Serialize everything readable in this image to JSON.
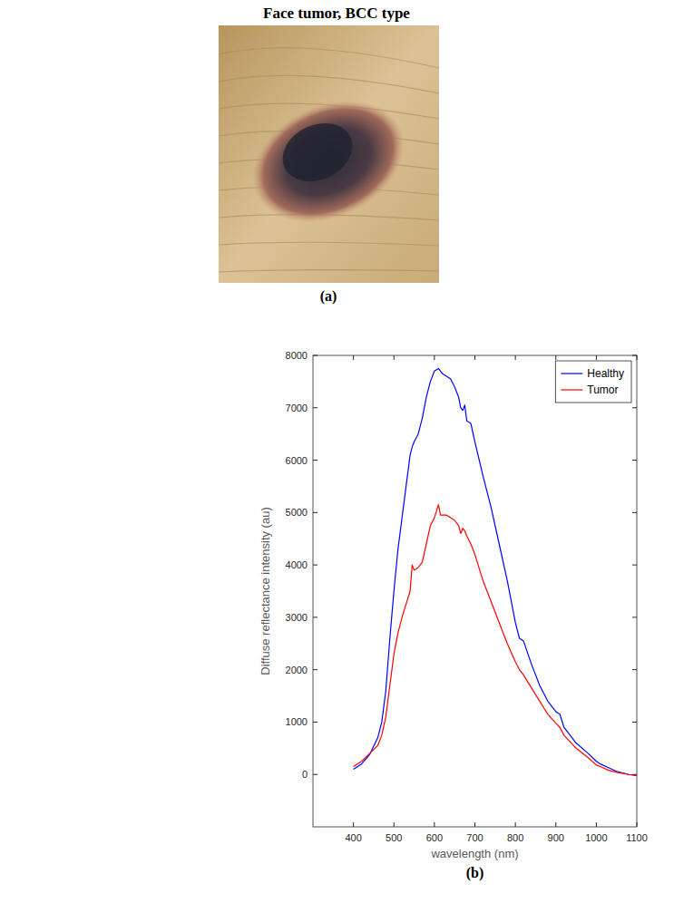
{
  "figure": {
    "title": "Face tumor, BCC type",
    "panels": [
      "(a)",
      "(b)"
    ]
  },
  "chart_data": {
    "type": "line",
    "xlabel": "wavelength (nm)",
    "ylabel": "Diffuse reflectance intensity (au)",
    "x": [
      400,
      420,
      440,
      460,
      470,
      480,
      490,
      500,
      510,
      520,
      530,
      540,
      545,
      550,
      560,
      570,
      580,
      590,
      600,
      610,
      615,
      620,
      630,
      640,
      650,
      660,
      665,
      670,
      675,
      680,
      690,
      700,
      720,
      740,
      760,
      780,
      800,
      810,
      820,
      840,
      860,
      880,
      900,
      910,
      920,
      950,
      980,
      1000,
      1010,
      1030,
      1050,
      1080,
      1100
    ],
    "series": [
      {
        "name": "Healthy",
        "color": "#0000ff",
        "values": [
          100,
          200,
          380,
          700,
          1000,
          1600,
          2600,
          3500,
          4300,
          4900,
          5500,
          6100,
          6250,
          6350,
          6500,
          6800,
          7200,
          7500,
          7700,
          7750,
          7700,
          7650,
          7600,
          7550,
          7400,
          7200,
          7000,
          6950,
          7050,
          6750,
          6700,
          6350,
          5700,
          5100,
          4400,
          3700,
          2900,
          2600,
          2550,
          2100,
          1700,
          1400,
          1200,
          1150,
          900,
          600,
          400,
          250,
          200,
          130,
          60,
          0,
          -20
        ]
      },
      {
        "name": "Tumor",
        "color": "#ff0000",
        "values": [
          150,
          250,
          400,
          550,
          750,
          1100,
          1700,
          2300,
          2700,
          3000,
          3250,
          3500,
          4000,
          3900,
          3950,
          4050,
          4400,
          4750,
          4900,
          5150,
          4950,
          4950,
          4950,
          4900,
          4850,
          4750,
          4600,
          4700,
          4650,
          4550,
          4400,
          4200,
          3700,
          3300,
          2900,
          2500,
          2150,
          2000,
          1900,
          1650,
          1400,
          1150,
          980,
          900,
          750,
          500,
          320,
          180,
          150,
          80,
          40,
          0,
          -20
        ]
      }
    ],
    "xlim": [
      300,
      1100
    ],
    "xticks": [
      400,
      500,
      600,
      700,
      800,
      900,
      1000,
      1100
    ],
    "ylim": [
      -1000,
      8000
    ],
    "yticks": [
      0,
      1000,
      2000,
      3000,
      4000,
      5000,
      6000,
      7000,
      8000
    ],
    "grid": false,
    "legend": "northeast"
  }
}
